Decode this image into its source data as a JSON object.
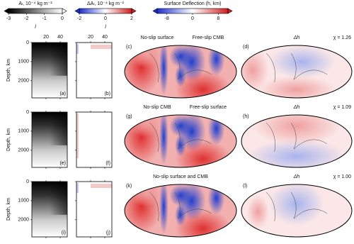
{
  "colorbars": [
    {
      "title": "Aₗ, 10⁻⁴ kg m⁻²",
      "lim": [
        -3,
        0
      ],
      "ticks": [
        -3,
        -2,
        -1,
        0
      ],
      "colors": [
        "#000000",
        "#ffffff"
      ]
    },
    {
      "title": "ΔAₗ, 10⁻⁴ kg m⁻²",
      "lim": [
        -2,
        2
      ],
      "ticks": [
        -2,
        0,
        2
      ],
      "colors": [
        "#1f2fd0",
        "#ffffff",
        "#d01f1f"
      ]
    },
    {
      "title": "Surface Deflection (h, km)",
      "lim": [
        -11,
        11
      ],
      "ticks": [
        -8,
        0,
        8
      ],
      "colors": [
        "#1f2fd0",
        "#ffffff",
        "#d01f1f"
      ]
    }
  ],
  "profile_axes": {
    "x_label": "l",
    "xlim": [
      0,
      50
    ],
    "xticks": [
      20,
      40
    ],
    "y_label": "Depth, km",
    "ylim": [
      0,
      2900
    ],
    "yticks": [
      0,
      1000,
      2000
    ]
  },
  "rows": [
    {
      "labels": [
        "(a)",
        "(b)",
        "(c)",
        "(d)"
      ],
      "map_titles": [
        "No-slip surface",
        "Free-slip CMB"
      ],
      "diff_title": "Δh",
      "chi": "χ = 1.26"
    },
    {
      "labels": [
        "(e)",
        "(f)",
        "(g)",
        "(h)"
      ],
      "map_titles": [
        "No-slip CMB",
        "Free-slip surface"
      ],
      "diff_title": "Δh",
      "chi": "χ = 1.09"
    },
    {
      "labels": [
        "(i)",
        "(j)",
        "(k)",
        "(l)"
      ],
      "map_titles": [
        "No-slip surface and CMB"
      ],
      "diff_title": "Δh",
      "chi": "χ = 1.00"
    }
  ]
}
